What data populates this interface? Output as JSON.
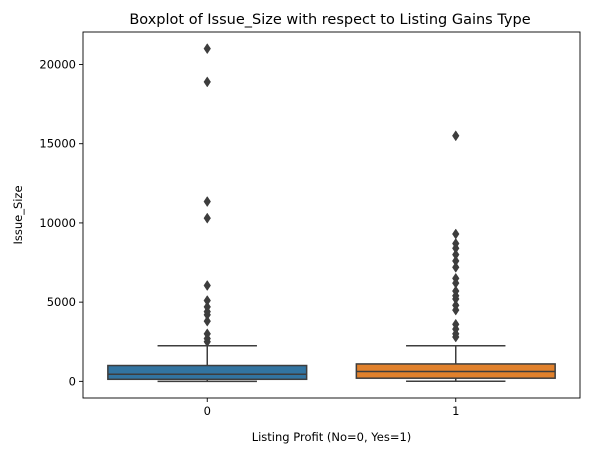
{
  "chart_data": {
    "type": "boxplot",
    "title": "Boxplot of Issue_Size with respect to Listing Gains Type",
    "xlabel": "Listing Profit (No=0, Yes=1)",
    "ylabel": "Issue_Size",
    "categories": [
      "0",
      "1"
    ],
    "ylim": [
      -1050,
      22050
    ],
    "yticks": [
      0,
      5000,
      10000,
      15000,
      20000
    ],
    "grid": false,
    "legend": "none",
    "boxes": [
      {
        "category": "0",
        "color": "#3274a1",
        "whisker_low": 0,
        "q1": 130,
        "median": 450,
        "q3": 1000,
        "whisker_high": 2250,
        "outliers": [
          2500,
          2700,
          3000,
          3800,
          4200,
          4400,
          4700,
          5100,
          6050,
          10300,
          11350,
          18900,
          21000
        ]
      },
      {
        "category": "1",
        "color": "#e1812c",
        "whisker_low": 10,
        "q1": 200,
        "median": 620,
        "q3": 1100,
        "whisker_high": 2250,
        "outliers": [
          2800,
          3000,
          3300,
          3600,
          4500,
          4800,
          5200,
          5400,
          5700,
          6200,
          6500,
          7200,
          7600,
          8000,
          8400,
          8700,
          9300,
          15500
        ]
      }
    ]
  }
}
